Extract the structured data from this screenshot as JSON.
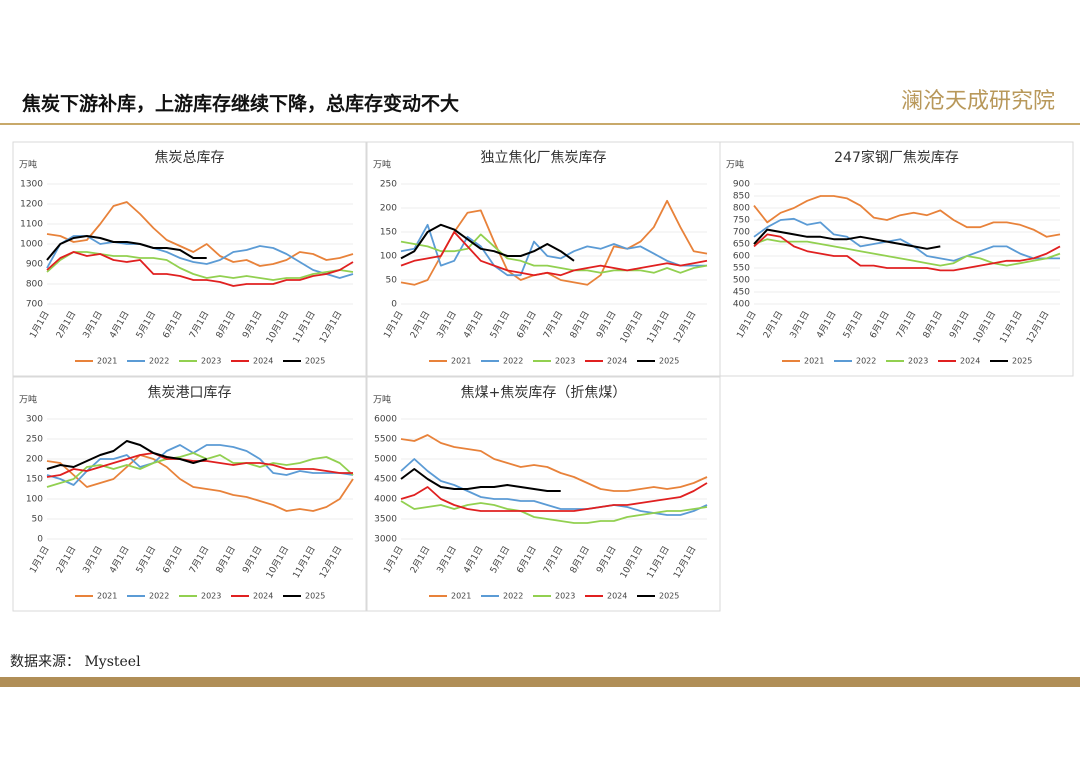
{
  "header": {
    "title": "焦炭下游补库，上游库存继续下降，总库存变动不大",
    "logo": "澜沧天成研究院"
  },
  "footer": {
    "source": "数据来源： Mysteel"
  },
  "chart_data": [
    {
      "type": "line",
      "title": "焦炭总库存",
      "y_unit": "万吨",
      "grid": true,
      "ylim": [
        700,
        1300
      ],
      "yticks": [
        700,
        800,
        900,
        1000,
        1100,
        1200,
        1300
      ],
      "categories": [
        "1月1日",
        null,
        "2月1日",
        null,
        "3月1日",
        null,
        "4月1日",
        null,
        "5月1日",
        null,
        "6月1日",
        null,
        "7月1日",
        null,
        "8月1日",
        null,
        "9月1日",
        null,
        "10月1日",
        null,
        "11月1日",
        null,
        "12月1日",
        null
      ],
      "series": [
        {
          "name": "2021",
          "color": "#e8823a",
          "values": [
            1050,
            1040,
            1010,
            1020,
            1100,
            1190,
            1210,
            1150,
            1080,
            1020,
            990,
            960,
            1000,
            940,
            910,
            920,
            890,
            900,
            920,
            960,
            950,
            920,
            930,
            950
          ]
        },
        {
          "name": "2022",
          "color": "#5b9bd5",
          "values": [
            880,
            1000,
            1040,
            1040,
            1000,
            1010,
            1000,
            1000,
            980,
            960,
            930,
            910,
            900,
            920,
            960,
            970,
            990,
            980,
            950,
            910,
            870,
            850,
            830,
            850
          ]
        },
        {
          "name": "2023",
          "color": "#92d050",
          "values": [
            860,
            920,
            960,
            960,
            950,
            940,
            940,
            930,
            930,
            920,
            880,
            850,
            830,
            840,
            830,
            840,
            830,
            820,
            830,
            830,
            850,
            860,
            870,
            860
          ]
        },
        {
          "name": "2024",
          "color": "#e02020",
          "values": [
            870,
            930,
            960,
            940,
            950,
            920,
            910,
            920,
            850,
            850,
            840,
            820,
            820,
            810,
            790,
            800,
            800,
            800,
            820,
            820,
            840,
            850,
            870,
            910
          ]
        },
        {
          "name": "2025",
          "color": "#000000",
          "values": [
            920,
            1000,
            1030,
            1040,
            1030,
            1010,
            1010,
            1000,
            980,
            980,
            970,
            930,
            930,
            null,
            null,
            null,
            null,
            null,
            null,
            null,
            null,
            null,
            null,
            null
          ]
        }
      ]
    },
    {
      "type": "line",
      "title": "独立焦化厂焦炭库存",
      "y_unit": "万吨",
      "grid": true,
      "ylim": [
        0,
        250
      ],
      "yticks": [
        0,
        50,
        100,
        150,
        200,
        250
      ],
      "categories": [
        "1月1日",
        null,
        "2月1日",
        null,
        "3月1日",
        null,
        "4月1日",
        null,
        "5月1日",
        null,
        "6月1日",
        null,
        "7月1日",
        null,
        "8月1日",
        null,
        "9月1日",
        null,
        "10月1日",
        null,
        "11月1日",
        null,
        "12月1日",
        null
      ],
      "series": [
        {
          "name": "2021",
          "color": "#e8823a",
          "values": [
            45,
            40,
            50,
            100,
            150,
            190,
            195,
            130,
            70,
            50,
            60,
            65,
            50,
            45,
            40,
            60,
            120,
            115,
            130,
            160,
            215,
            160,
            110,
            105
          ]
        },
        {
          "name": "2022",
          "color": "#5b9bd5",
          "values": [
            110,
            115,
            165,
            80,
            90,
            140,
            120,
            80,
            60,
            60,
            130,
            100,
            95,
            110,
            120,
            115,
            125,
            115,
            120,
            105,
            90,
            80,
            80,
            80
          ]
        },
        {
          "name": "2023",
          "color": "#92d050",
          "values": [
            130,
            125,
            120,
            110,
            110,
            115,
            145,
            120,
            95,
            90,
            80,
            80,
            75,
            70,
            70,
            65,
            70,
            70,
            70,
            65,
            75,
            65,
            75,
            80
          ]
        },
        {
          "name": "2024",
          "color": "#e02020",
          "values": [
            80,
            90,
            95,
            100,
            150,
            120,
            90,
            80,
            70,
            65,
            60,
            65,
            60,
            70,
            75,
            80,
            75,
            70,
            75,
            80,
            85,
            80,
            85,
            90
          ]
        },
        {
          "name": "2025",
          "color": "#000000",
          "values": [
            95,
            110,
            150,
            165,
            155,
            135,
            115,
            110,
            100,
            100,
            110,
            125,
            110,
            90,
            null,
            null,
            null,
            null,
            null,
            null,
            null,
            null,
            null,
            null
          ]
        }
      ]
    },
    {
      "type": "line",
      "title": "247家钢厂焦炭库存",
      "y_unit": "万吨",
      "grid": true,
      "ylim": [
        400,
        900
      ],
      "yticks": [
        400,
        450,
        500,
        550,
        600,
        650,
        700,
        750,
        800,
        850,
        900
      ],
      "categories": [
        "1月1日",
        null,
        "2月1日",
        null,
        "3月1日",
        null,
        "4月1日",
        null,
        "5月1日",
        null,
        "6月1日",
        null,
        "7月1日",
        null,
        "8月1日",
        null,
        "9月1日",
        null,
        "10月1日",
        null,
        "11月1日",
        null,
        "12月1日",
        null
      ],
      "series": [
        {
          "name": "2021",
          "color": "#e8823a",
          "values": [
            810,
            740,
            780,
            800,
            830,
            850,
            850,
            840,
            810,
            760,
            750,
            770,
            780,
            770,
            790,
            750,
            720,
            720,
            740,
            740,
            730,
            710,
            680,
            690
          ]
        },
        {
          "name": "2022",
          "color": "#5b9bd5",
          "values": [
            680,
            720,
            750,
            755,
            730,
            740,
            690,
            680,
            640,
            650,
            660,
            670,
            640,
            600,
            590,
            580,
            600,
            620,
            640,
            640,
            610,
            590,
            590,
            590
          ]
        },
        {
          "name": "2023",
          "color": "#92d050",
          "values": [
            650,
            670,
            660,
            660,
            660,
            650,
            640,
            630,
            620,
            610,
            600,
            590,
            580,
            570,
            560,
            570,
            600,
            590,
            570,
            560,
            570,
            580,
            590,
            610
          ]
        },
        {
          "name": "2024",
          "color": "#e02020",
          "values": [
            640,
            690,
            680,
            640,
            620,
            610,
            600,
            600,
            560,
            560,
            550,
            550,
            550,
            550,
            540,
            540,
            550,
            560,
            570,
            580,
            580,
            590,
            610,
            640
          ]
        },
        {
          "name": "2025",
          "color": "#000000",
          "values": [
            650,
            710,
            700,
            690,
            680,
            680,
            670,
            670,
            680,
            670,
            660,
            650,
            640,
            630,
            640,
            null,
            null,
            null,
            null,
            null,
            null,
            null,
            null,
            null
          ]
        }
      ]
    },
    {
      "type": "line",
      "title": "焦炭港口库存",
      "y_unit": "万吨",
      "grid": true,
      "ylim": [
        0,
        300
      ],
      "yticks": [
        0,
        50,
        100,
        150,
        200,
        250,
        300
      ],
      "categories": [
        "1月1日",
        null,
        "2月1日",
        null,
        "3月1日",
        null,
        "4月1日",
        null,
        "5月1日",
        null,
        "6月1日",
        null,
        "7月1日",
        null,
        "8月1日",
        null,
        "9月1日",
        null,
        "10月1日",
        null,
        "11月1日",
        null,
        "12月1日",
        null
      ],
      "series": [
        {
          "name": "2021",
          "color": "#e8823a",
          "values": [
            195,
            190,
            160,
            130,
            140,
            150,
            180,
            210,
            200,
            180,
            150,
            130,
            125,
            120,
            110,
            105,
            95,
            85,
            70,
            75,
            70,
            80,
            100,
            150
          ]
        },
        {
          "name": "2022",
          "color": "#5b9bd5",
          "values": [
            160,
            150,
            135,
            170,
            200,
            200,
            210,
            180,
            190,
            220,
            235,
            215,
            235,
            235,
            230,
            220,
            200,
            165,
            160,
            170,
            165,
            165,
            165,
            160
          ]
        },
        {
          "name": "2023",
          "color": "#92d050",
          "values": [
            130,
            140,
            150,
            180,
            185,
            175,
            185,
            175,
            190,
            200,
            205,
            215,
            200,
            210,
            190,
            190,
            180,
            190,
            185,
            190,
            200,
            205,
            190,
            160
          ]
        },
        {
          "name": "2024",
          "color": "#e02020",
          "values": [
            155,
            160,
            175,
            170,
            180,
            190,
            200,
            210,
            215,
            200,
            200,
            195,
            195,
            190,
            185,
            190,
            190,
            185,
            175,
            175,
            175,
            170,
            165,
            165
          ]
        },
        {
          "name": "2025",
          "color": "#000000",
          "values": [
            175,
            185,
            180,
            195,
            210,
            220,
            245,
            235,
            215,
            205,
            200,
            190,
            200,
            null,
            null,
            null,
            null,
            null,
            null,
            null,
            null,
            null,
            null,
            null
          ]
        }
      ]
    },
    {
      "type": "line",
      "title": "焦煤+焦炭库存（折焦煤）",
      "y_unit": "万吨",
      "grid": true,
      "ylim": [
        3000,
        6000
      ],
      "yticks": [
        3000,
        3500,
        4000,
        4500,
        5000,
        5500,
        6000
      ],
      "categories": [
        "1月1日",
        null,
        "2月1日",
        null,
        "3月1日",
        null,
        "4月1日",
        null,
        "5月1日",
        null,
        "6月1日",
        null,
        "7月1日",
        null,
        "8月1日",
        null,
        "9月1日",
        null,
        "10月1日",
        null,
        "11月1日",
        null,
        "12月1日",
        null
      ],
      "series": [
        {
          "name": "2021",
          "color": "#e8823a",
          "values": [
            5500,
            5450,
            5600,
            5400,
            5300,
            5250,
            5200,
            5000,
            4900,
            4800,
            4850,
            4800,
            4650,
            4550,
            4400,
            4250,
            4200,
            4200,
            4250,
            4300,
            4250,
            4300,
            4400,
            4550
          ]
        },
        {
          "name": "2022",
          "color": "#5b9bd5",
          "values": [
            4700,
            5000,
            4700,
            4450,
            4350,
            4200,
            4050,
            4000,
            4000,
            3950,
            3950,
            3850,
            3750,
            3750,
            3750,
            3800,
            3850,
            3800,
            3700,
            3650,
            3600,
            3600,
            3700,
            3850
          ]
        },
        {
          "name": "2023",
          "color": "#92d050",
          "values": [
            3950,
            3750,
            3800,
            3850,
            3750,
            3850,
            3900,
            3850,
            3750,
            3700,
            3550,
            3500,
            3450,
            3400,
            3400,
            3450,
            3450,
            3550,
            3600,
            3650,
            3700,
            3700,
            3750,
            3800
          ]
        },
        {
          "name": "2024",
          "color": "#e02020",
          "values": [
            4000,
            4100,
            4300,
            4000,
            3850,
            3750,
            3700,
            3700,
            3700,
            3700,
            3700,
            3700,
            3700,
            3700,
            3750,
            3800,
            3850,
            3850,
            3900,
            3950,
            4000,
            4050,
            4200,
            4400
          ]
        },
        {
          "name": "2025",
          "color": "#000000",
          "values": [
            4500,
            4750,
            4500,
            4300,
            4250,
            4250,
            4300,
            4300,
            4350,
            4300,
            4250,
            4200,
            4200,
            null,
            null,
            null,
            null,
            null,
            null,
            null,
            null,
            null,
            null,
            null
          ]
        }
      ]
    }
  ]
}
